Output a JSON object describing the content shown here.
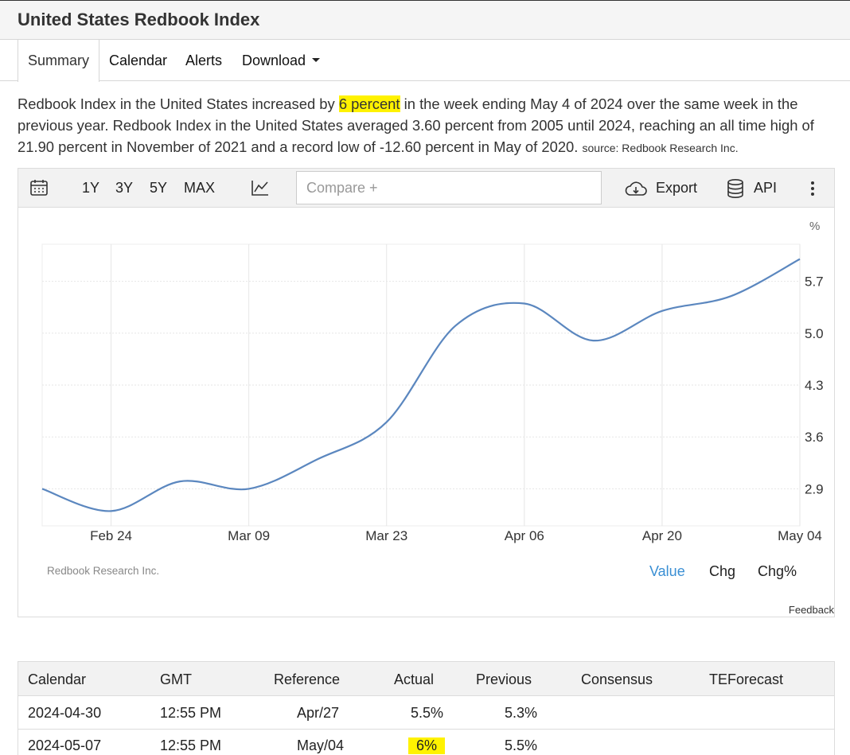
{
  "page": {
    "title": "United States Redbook Index"
  },
  "tabs": [
    {
      "label": "Summary"
    },
    {
      "label": "Calendar"
    },
    {
      "label": "Alerts"
    },
    {
      "label": "Download"
    }
  ],
  "description": {
    "part1": "Redbook Index in the United States increased by",
    "highlight": "6 percent",
    "part2": " in the week ending May 4 of 2024 over the same week in the previous year. Redbook Index in the United States averaged 3.60 percent from 2005 until 2024, reaching an all time high of 21.90 percent in November of 2021 and a record low of -12.60 percent in May of 2020. ",
    "source": "source: Redbook Research Inc."
  },
  "toolbar": {
    "ranges": [
      "1Y",
      "3Y",
      "5Y",
      "MAX"
    ],
    "compare_placeholder": "Compare +",
    "export_label": "Export",
    "api_label": "API"
  },
  "chart_data": {
    "type": "line",
    "unit": "%",
    "x": [
      "2024-02-17",
      "2024-02-24",
      "2024-03-02",
      "2024-03-09",
      "2024-03-16",
      "2024-03-23",
      "2024-03-30",
      "2024-04-06",
      "2024-04-13",
      "2024-04-20",
      "2024-04-27",
      "2024-05-04"
    ],
    "x_tick_labels": [
      "Feb 24",
      "Mar 09",
      "Mar 23",
      "Apr 06",
      "Apr 20",
      "May 04"
    ],
    "y_ticks": [
      2.9,
      3.6,
      4.3,
      5.0,
      5.7
    ],
    "ylim": [
      2.4,
      6.2
    ],
    "series": [
      {
        "values": [
          2.9,
          2.6,
          3.0,
          2.9,
          3.3,
          3.8,
          5.1,
          5.4,
          4.9,
          5.3,
          5.5,
          6.0
        ],
        "color": "#5b87bf"
      }
    ],
    "grid": true
  },
  "chart_footer": {
    "source": "Redbook Research Inc.",
    "modes": [
      "Value",
      "Chg",
      "Chg%"
    ],
    "feedback": "Feedback"
  },
  "calendar_table": {
    "headers": [
      "Calendar",
      "GMT",
      "Reference",
      "Actual",
      "Previous",
      "Consensus",
      "TEForecast"
    ],
    "rows": [
      {
        "date": "2024-04-30",
        "gmt": "12:55 PM",
        "reference": "Apr/27",
        "actual": "5.5%",
        "previous": "5.3%"
      },
      {
        "date": "2024-05-07",
        "gmt": "12:55 PM",
        "reference": "May/04",
        "actual": "6%",
        "previous": "5.5%"
      }
    ]
  },
  "colors": {
    "accent": "#3a8fd4",
    "highlight": "#fff200",
    "line": "#5b87bf"
  }
}
